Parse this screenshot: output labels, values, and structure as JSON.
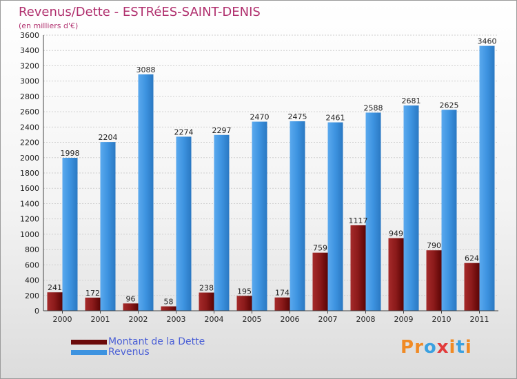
{
  "title": "Revenus/Dette - ESTRéES-SAINT-DENIS",
  "subtitle": "(en milliers d'€)",
  "legend": [
    {
      "label": "Montant de la Dette",
      "color": "#6b0a0a"
    },
    {
      "label": "Revenus",
      "color": "#3d93e0"
    }
  ],
  "logo": "Proxiti",
  "chart_data": {
    "type": "bar",
    "categories": [
      "2000",
      "2001",
      "2002",
      "2003",
      "2004",
      "2005",
      "2006",
      "2007",
      "2008",
      "2009",
      "2010",
      "2011"
    ],
    "series": [
      {
        "name": "Montant de la Dette",
        "values": [
          241,
          172,
          96,
          58,
          238,
          195,
          174,
          759,
          1117,
          949,
          790,
          624
        ],
        "color": "#8b1a1a"
      },
      {
        "name": "Revenus",
        "values": [
          1998,
          2204,
          3088,
          2274,
          2297,
          2470,
          2475,
          2461,
          2588,
          2681,
          2625,
          3460
        ],
        "color": "#3d93e0"
      }
    ],
    "ylim": [
      0,
      3600
    ],
    "ytick_step": 200,
    "grid": true,
    "legend_position": "bottom-left"
  }
}
